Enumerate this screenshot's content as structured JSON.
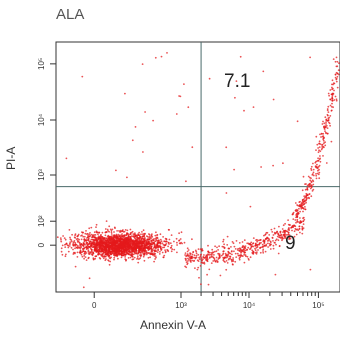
{
  "chart_data": {
    "type": "scatter",
    "title": "ALA",
    "xlabel": "Annexin V-A",
    "ylabel": "PI-A",
    "x_ticks": [
      "0",
      "10³",
      "10⁴",
      "10⁵"
    ],
    "y_ticks": [
      "0",
      "10²",
      "10³",
      "10⁴",
      "10⁵"
    ],
    "x_scale": "biexponential",
    "y_scale": "biexponential",
    "quadrant_gates": {
      "x": 2000,
      "y": 600
    },
    "quadrant_labels": {
      "upper_right": "7.1",
      "lower_right": "9"
    },
    "series": [
      {
        "color": "#e41a1c",
        "clusters": [
          {
            "population": "viable",
            "x_range": [
              -100,
              1500
            ],
            "y_range": [
              -100,
              120
            ],
            "count": 2200
          },
          {
            "population": "early_apoptotic",
            "x_range": [
              1500,
              60000
            ],
            "y_range": [
              0,
              500
            ],
            "count": 500
          },
          {
            "population": "late_apoptotic",
            "x_range": [
              50000,
              260000
            ],
            "y_range": [
              600,
              100000
            ],
            "count": 300
          }
        ]
      }
    ]
  },
  "colors": {
    "dots": "#e41a1c",
    "axes": "#333333",
    "gate_lines": "#4a6a6a"
  }
}
